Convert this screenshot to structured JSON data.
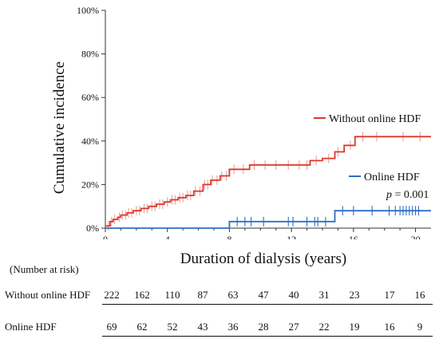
{
  "chart_data": {
    "type": "line",
    "xlabel": "Duration of dialysis (years)",
    "ylabel": "Cumulative incidence",
    "xlim": [
      0,
      21
    ],
    "ylim": [
      0,
      100
    ],
    "x_ticks": [
      0,
      4,
      8,
      12,
      16,
      20
    ],
    "y_ticks": [
      "0%",
      "20%",
      "40%",
      "60%",
      "80%",
      "100%"
    ],
    "y_tick_values": [
      0,
      20,
      40,
      60,
      80,
      100
    ],
    "annotation": "p = 0.001",
    "annotation_parts": {
      "italic": "p",
      "rest": " = 0.001"
    },
    "series": [
      {
        "name": "Without online HDF",
        "color": "#d93a2b",
        "censor_color": "#e8a0a0",
        "x": [
          0,
          0.3,
          0.5,
          0.8,
          1.0,
          1.4,
          1.8,
          2.3,
          2.8,
          3.3,
          3.8,
          4.2,
          4.7,
          5.2,
          5.7,
          6.3,
          6.8,
          7.4,
          8.0,
          9.3,
          13.2,
          14.0,
          14.8,
          15.4,
          16.1,
          21.0
        ],
        "y": [
          1,
          3,
          4,
          5,
          6,
          7,
          8,
          9,
          10,
          11,
          12,
          13,
          14,
          15,
          17,
          20,
          22,
          24,
          27,
          29,
          31,
          32,
          35,
          38,
          42,
          42
        ],
        "censor_x": [
          0.2,
          0.4,
          0.6,
          0.9,
          1.1,
          1.3,
          1.5,
          1.7,
          2.0,
          2.2,
          2.5,
          2.7,
          3.0,
          3.2,
          3.5,
          3.7,
          4.0,
          4.3,
          4.5,
          4.8,
          5.0,
          5.3,
          5.5,
          5.8,
          6.1,
          6.4,
          6.6,
          6.9,
          7.2,
          7.5,
          7.8,
          8.3,
          8.9,
          9.6,
          10.3,
          11.0,
          11.8,
          12.5,
          13.0,
          13.6,
          14.4,
          15.0,
          15.8,
          16.6,
          17.5,
          19.2,
          20.3
        ]
      },
      {
        "name": "Online HDF",
        "color": "#2f6fc4",
        "censor_color": "#2f6fc4",
        "x": [
          0,
          8.0,
          14.8,
          21.0
        ],
        "y": [
          0,
          3,
          8,
          8
        ],
        "censor_x": [
          8.5,
          9.0,
          9.4,
          10.2,
          11.8,
          12.1,
          13.0,
          13.5,
          13.7,
          14.2,
          15.3,
          16.0,
          17.2,
          18.3,
          18.7,
          19.0,
          19.2,
          19.4,
          19.6,
          19.8,
          20.0,
          20.2
        ]
      }
    ],
    "risk_table": {
      "title": "(Number at risk)",
      "times": [
        0,
        2,
        4,
        6,
        8,
        10,
        12,
        14,
        16,
        18,
        20
      ],
      "rows": [
        {
          "name": "Without online HDF",
          "values": [
            222,
            162,
            110,
            87,
            63,
            47,
            40,
            31,
            23,
            17,
            16
          ]
        },
        {
          "name": "Online HDF",
          "values": [
            69,
            62,
            52,
            43,
            36,
            28,
            27,
            22,
            19,
            16,
            9
          ]
        }
      ]
    }
  }
}
